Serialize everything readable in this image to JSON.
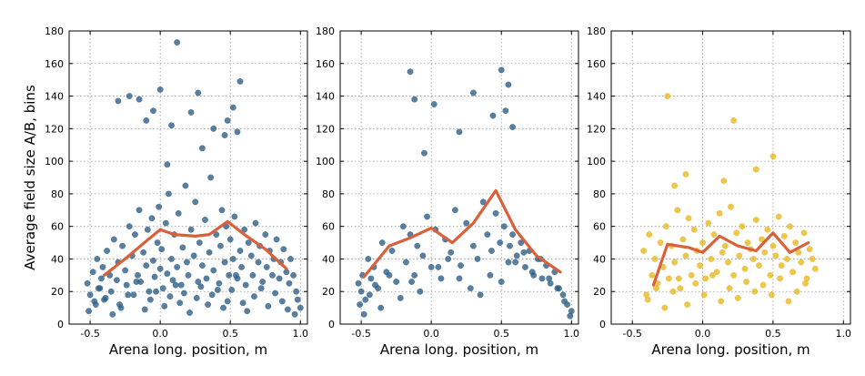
{
  "chart_data": [
    {
      "type": "scatter",
      "panel": "left",
      "xlabel": "Arena long. position, m",
      "ylabel": "Average field size A/B, bins",
      "xlim": [
        -0.65,
        1.05
      ],
      "ylim": [
        0,
        180
      ],
      "xticks": [
        -0.5,
        0.0,
        0.5,
        1.0
      ],
      "yticks": [
        0,
        20,
        40,
        60,
        80,
        100,
        120,
        140,
        160,
        180
      ],
      "grid": true,
      "scatter_color": "#2e5f87",
      "line_color": "#d9603b",
      "series": [
        {
          "kind": "points",
          "x": [
            -0.52,
            -0.5,
            -0.48,
            -0.46,
            -0.45,
            -0.44,
            -0.42,
            -0.41,
            -0.4,
            -0.38,
            -0.36,
            -0.35,
            -0.33,
            -0.31,
            -0.3,
            -0.28,
            -0.27,
            -0.25,
            -0.24,
            -0.22,
            -0.2,
            -0.19,
            -0.18,
            -0.16,
            -0.15,
            -0.14,
            -0.12,
            -0.1,
            -0.09,
            -0.08,
            -0.06,
            -0.05,
            -0.04,
            -0.02,
            -0.01,
            0.0,
            0.01,
            0.02,
            0.04,
            0.05,
            0.06,
            0.08,
            0.09,
            0.1,
            0.12,
            0.13,
            0.15,
            0.16,
            0.18,
            0.19,
            0.2,
            0.22,
            0.24,
            0.25,
            0.27,
            0.28,
            0.3,
            0.32,
            0.33,
            0.35,
            0.36,
            0.38,
            0.4,
            0.41,
            0.43,
            0.44,
            0.46,
            0.47,
            0.49,
            0.5,
            0.52,
            0.53,
            0.55,
            0.57,
            0.58,
            0.6,
            0.61,
            0.63,
            0.65,
            0.66,
            0.68,
            0.7,
            0.71,
            0.73,
            0.75,
            0.76,
            0.78,
            0.8,
            0.81,
            0.83,
            0.85,
            0.86,
            0.88,
            0.9,
            0.92,
            0.93,
            0.95,
            0.97,
            0.98,
            1.0,
            -0.51,
            -0.47,
            -0.43,
            -0.39,
            -0.34,
            -0.29,
            -0.23,
            -0.17,
            -0.11,
            -0.07,
            -0.03,
            0.03,
            0.07,
            0.11,
            0.14,
            0.17,
            0.21,
            0.26,
            0.29,
            0.34,
            0.37,
            0.42,
            0.45,
            0.48,
            0.51,
            0.54,
            0.59,
            0.62,
            0.67,
            0.72,
            0.77,
            0.82,
            0.87,
            0.91,
            0.96,
            -0.3,
            -0.22,
            -0.15,
            -0.1,
            -0.05,
            0.0,
            0.05,
            0.08,
            0.12,
            0.22,
            0.27,
            0.3,
            0.38,
            0.46,
            0.48,
            0.52,
            0.55,
            0.57
          ],
          "y": [
            25,
            18,
            32,
            12,
            40,
            22,
            28,
            35,
            15,
            45,
            30,
            20,
            52,
            27,
            38,
            10,
            48,
            33,
            24,
            60,
            42,
            18,
            55,
            30,
            70,
            26,
            44,
            36,
            58,
            20,
            65,
            39,
            29,
            50,
            72,
            34,
            46,
            22,
            62,
            31,
            80,
            40,
            27,
            55,
            35,
            68,
            24,
            47,
            85,
            38,
            30,
            58,
            42,
            75,
            26,
            50,
            36,
            64,
            28,
            44,
            90,
            33,
            55,
            21,
            48,
            70,
            38,
            60,
            30,
            52,
            40,
            66,
            28,
            45,
            35,
            58,
            24,
            50,
            42,
            30,
            62,
            38,
            48,
            26,
            55,
            35,
            45,
            30,
            40,
            52,
            28,
            38,
            46,
            32,
            25,
            40,
            30,
            20,
            15,
            10,
            8,
            14,
            22,
            16,
            6,
            12,
            18,
            26,
            9,
            15,
            20,
            11,
            17,
            24,
            13,
            19,
            7,
            16,
            23,
            12,
            18,
            25,
            10,
            14,
            21,
            30,
            13,
            8,
            17,
            22,
            11,
            19,
            14,
            9,
            6,
            137,
            140,
            138,
            125,
            131,
            144,
            98,
            122,
            173,
            130,
            142,
            108,
            120,
            116,
            125,
            133,
            118,
            149
          ]
        },
        {
          "kind": "mean-line",
          "x": [
            -0.4,
            -0.25,
            -0.1,
            0.0,
            0.1,
            0.25,
            0.35,
            0.48,
            0.6,
            0.75,
            0.9
          ],
          "y": [
            30,
            40,
            51,
            58,
            55,
            54,
            55,
            63,
            55,
            46,
            34
          ]
        }
      ]
    },
    {
      "type": "scatter",
      "panel": "middle",
      "xlabel": "Arena long. position, m",
      "ylabel": "",
      "xlim": [
        -0.65,
        1.05
      ],
      "ylim": [
        0,
        180
      ],
      "xticks": [
        -0.5,
        0.0,
        0.5,
        1.0
      ],
      "yticks": [
        0,
        20,
        40,
        60,
        80,
        100,
        120,
        140,
        160,
        180
      ],
      "grid": true,
      "scatter_color": "#2e5f87",
      "line_color": "#d9603b",
      "series": [
        {
          "kind": "points",
          "x": [
            -0.52,
            -0.5,
            -0.49,
            -0.47,
            -0.45,
            -0.43,
            -0.41,
            -0.38,
            -0.35,
            -0.32,
            -0.28,
            -0.25,
            -0.2,
            -0.18,
            -0.15,
            -0.12,
            -0.1,
            -0.06,
            -0.03,
            0.0,
            0.03,
            0.07,
            0.1,
            0.14,
            0.17,
            0.21,
            0.25,
            0.3,
            0.33,
            0.37,
            0.4,
            0.43,
            0.46,
            0.49,
            0.52,
            0.55,
            0.58,
            0.61,
            0.64,
            0.67,
            0.7,
            0.73,
            0.76,
            0.79,
            0.82,
            0.85,
            0.88,
            0.91,
            0.94,
            0.97,
            1.0,
            -0.51,
            -0.48,
            -0.44,
            -0.4,
            -0.36,
            -0.3,
            -0.22,
            -0.14,
            -0.08,
            0.05,
            0.12,
            0.2,
            0.28,
            0.35,
            0.42,
            0.5,
            0.56,
            0.6,
            0.66,
            0.72,
            0.78,
            0.84,
            0.9,
            0.95,
            0.99,
            -0.15,
            -0.12,
            -0.05,
            0.02,
            0.2,
            0.3,
            0.44,
            0.5,
            0.53,
            0.55,
            0.58
          ],
          "y": [
            25,
            20,
            30,
            15,
            40,
            28,
            35,
            22,
            50,
            32,
            45,
            26,
            60,
            38,
            55,
            30,
            48,
            42,
            66,
            35,
            58,
            28,
            52,
            44,
            70,
            36,
            62,
            48,
            40,
            75,
            55,
            45,
            68,
            50,
            60,
            38,
            55,
            42,
            50,
            35,
            45,
            30,
            40,
            28,
            36,
            25,
            32,
            22,
            18,
            12,
            8,
            12,
            6,
            18,
            24,
            10,
            30,
            16,
            26,
            20,
            35,
            40,
            28,
            22,
            18,
            30,
            26,
            48,
            38,
            44,
            32,
            40,
            28,
            22,
            14,
            5,
            155,
            138,
            105,
            135,
            118,
            142,
            128,
            156,
            131,
            147,
            121
          ]
        },
        {
          "kind": "mean-line",
          "x": [
            -0.48,
            -0.3,
            -0.15,
            0.0,
            0.15,
            0.3,
            0.46,
            0.6,
            0.75,
            0.92
          ],
          "y": [
            29,
            48,
            53,
            59,
            50,
            62,
            82,
            58,
            42,
            32
          ]
        }
      ]
    },
    {
      "type": "scatter",
      "panel": "right",
      "xlabel": "Arena long. position, m",
      "ylabel": "",
      "xlim": [
        -0.65,
        1.05
      ],
      "ylim": [
        0,
        180
      ],
      "xticks": [
        -0.5,
        0.0,
        0.5,
        1.0
      ],
      "yticks": [
        0,
        20,
        40,
        60,
        80,
        100,
        120,
        140,
        160,
        180
      ],
      "grid": true,
      "scatter_color": "#e8b820",
      "line_color": "#d9603b",
      "series": [
        {
          "kind": "points",
          "x": [
            -0.42,
            -0.4,
            -0.38,
            -0.36,
            -0.34,
            -0.32,
            -0.3,
            -0.28,
            -0.26,
            -0.24,
            -0.22,
            -0.2,
            -0.18,
            -0.16,
            -0.14,
            -0.12,
            -0.1,
            -0.08,
            -0.06,
            -0.04,
            -0.02,
            0.0,
            0.02,
            0.04,
            0.06,
            0.08,
            0.1,
            0.12,
            0.14,
            0.16,
            0.18,
            0.2,
            0.22,
            0.24,
            0.26,
            0.28,
            0.3,
            0.32,
            0.34,
            0.36,
            0.38,
            0.4,
            0.42,
            0.44,
            0.46,
            0.48,
            0.5,
            0.52,
            0.54,
            0.56,
            0.58,
            0.6,
            0.62,
            0.64,
            0.66,
            0.68,
            0.7,
            0.72,
            0.74,
            0.76,
            0.78,
            0.8,
            -0.39,
            -0.33,
            -0.27,
            -0.21,
            -0.17,
            -0.11,
            -0.05,
            0.01,
            0.07,
            0.13,
            0.19,
            0.25,
            0.31,
            0.37,
            0.43,
            0.49,
            0.55,
            0.61,
            0.67,
            0.73,
            -0.25,
            -0.2,
            -0.12,
            0.15,
            0.22,
            0.38,
            0.5
          ],
          "y": [
            45,
            18,
            55,
            30,
            40,
            25,
            50,
            35,
            60,
            28,
            48,
            38,
            70,
            22,
            52,
            42,
            65,
            30,
            58,
            45,
            36,
            50,
            28,
            62,
            40,
            55,
            32,
            68,
            44,
            48,
            38,
            72,
            30,
            56,
            42,
            60,
            34,
            50,
            46,
            40,
            64,
            36,
            52,
            44,
            58,
            30,
            48,
            42,
            66,
            36,
            54,
            40,
            60,
            32,
            50,
            44,
            38,
            56,
            28,
            46,
            40,
            34,
            15,
            22,
            10,
            20,
            28,
            12,
            25,
            18,
            30,
            14,
            22,
            16,
            26,
            20,
            24,
            18,
            28,
            14,
            20,
            25,
            140,
            85,
            92,
            88,
            125,
            95,
            103
          ]
        },
        {
          "kind": "mean-line",
          "x": [
            -0.35,
            -0.25,
            -0.1,
            0.0,
            0.12,
            0.25,
            0.38,
            0.5,
            0.62,
            0.75
          ],
          "y": [
            24,
            49,
            47,
            44,
            54,
            48,
            45,
            56,
            44,
            50
          ]
        }
      ]
    }
  ]
}
